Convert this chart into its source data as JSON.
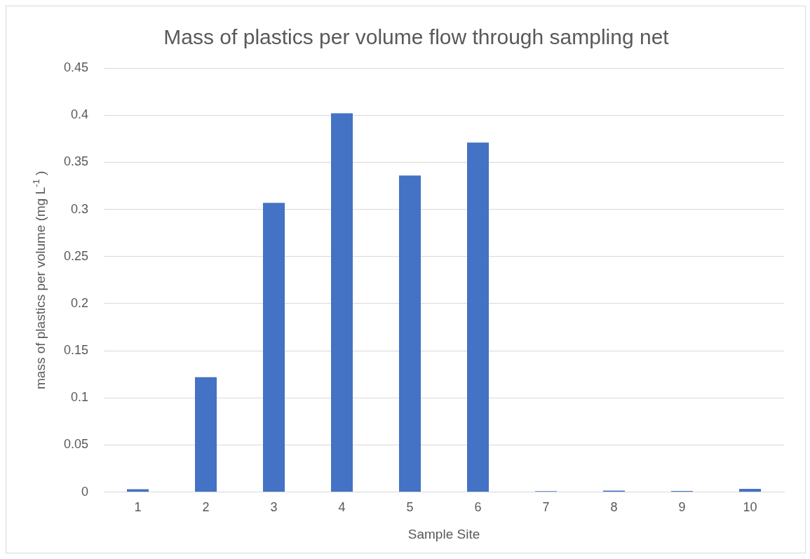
{
  "chart_data": {
    "type": "bar",
    "title": "Mass of plastics per volume flow through sampling net",
    "xlabel": "Sample Site",
    "ylabel": "mass of plastics per volume (mg L$^{-1}$ )",
    "categories": [
      "1",
      "2",
      "3",
      "4",
      "5",
      "6",
      "7",
      "8",
      "9",
      "10"
    ],
    "values": [
      0.003,
      0.122,
      0.307,
      0.402,
      0.336,
      0.371,
      0.001,
      0.0015,
      0.0012,
      0.0035
    ],
    "color": "#4472c4",
    "ylim": [
      0,
      0.45
    ],
    "yticks": [
      0,
      0.05,
      0.1,
      0.15,
      0.2,
      0.25,
      0.3,
      0.35,
      0.4,
      0.45
    ],
    "grid": "y",
    "legend": false
  }
}
